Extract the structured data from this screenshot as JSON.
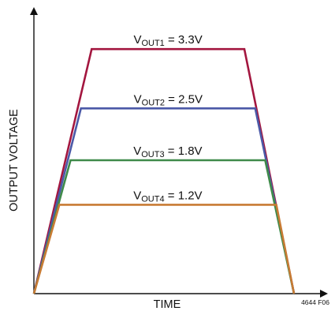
{
  "chart_data": {
    "type": "line",
    "title": "",
    "xlabel": "TIME",
    "ylabel": "OUTPUT VOLTAGE",
    "figure_id": "4644 F06",
    "grid": false,
    "legend": "none",
    "x_domain": [
      0,
      10
    ],
    "y_domain": [
      0,
      3.75
    ],
    "series": [
      {
        "name": "VOUT1 = 3.3V",
        "label_main": "V",
        "label_sub": "OUT1",
        "label_rest": " = 3.3V",
        "color": "#a3163f",
        "x": [
          0,
          2.22,
          8.09,
          10
        ],
        "y": [
          0,
          3.3,
          3.3,
          0
        ]
      },
      {
        "name": "VOUT2 = 2.5V",
        "label_main": "V",
        "label_sub": "OUT2",
        "label_rest": " = 2.5V",
        "color": "#4b59a7",
        "x": [
          0,
          1.81,
          8.51,
          10
        ],
        "y": [
          0,
          2.5,
          2.5,
          0
        ]
      },
      {
        "name": "VOUT3 = 1.8V",
        "label_main": "V",
        "label_sub": "OUT3",
        "label_rest": " = 1.8V",
        "color": "#3f8a4a",
        "x": [
          0,
          1.41,
          8.89,
          10
        ],
        "y": [
          0,
          1.8,
          1.8,
          0
        ]
      },
      {
        "name": "VOUT4 = 1.2V",
        "label_main": "V",
        "label_sub": "OUT4",
        "label_rest": " = 1.2V",
        "color": "#c87b34",
        "x": [
          0,
          0.98,
          9.32,
          10
        ],
        "y": [
          0,
          1.2,
          1.2,
          0
        ]
      }
    ]
  }
}
